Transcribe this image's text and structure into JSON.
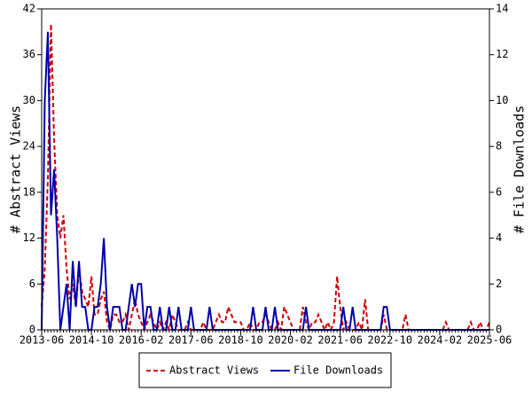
{
  "chart_data": {
    "type": "line",
    "y_label": "# Abstract Views",
    "y2_label": "# File Downloads",
    "categories": [
      "2013-06",
      "2013-07",
      "2013-08",
      "2013-09",
      "2013-10",
      "2013-11",
      "2013-12",
      "2014-01",
      "2014-02",
      "2014-03",
      "2014-04",
      "2014-05",
      "2014-06",
      "2014-07",
      "2014-08",
      "2014-09",
      "2014-10",
      "2014-11",
      "2014-12",
      "2015-01",
      "2015-02",
      "2015-03",
      "2015-04",
      "2015-05",
      "2015-06",
      "2015-07",
      "2015-08",
      "2015-09",
      "2015-10",
      "2015-11",
      "2015-12",
      "2016-01",
      "2016-02",
      "2016-03",
      "2016-04",
      "2016-05",
      "2016-06",
      "2016-07",
      "2016-08",
      "2016-09",
      "2016-10",
      "2016-11",
      "2016-12",
      "2017-01",
      "2017-02",
      "2017-03",
      "2017-04",
      "2017-05",
      "2017-06",
      "2017-07",
      "2017-08",
      "2017-09",
      "2017-10",
      "2017-11",
      "2017-12",
      "2018-01",
      "2018-02",
      "2018-03",
      "2018-04",
      "2018-05",
      "2018-06",
      "2018-07",
      "2018-08",
      "2018-09",
      "2018-10",
      "2018-11",
      "2018-12",
      "2019-01",
      "2019-02",
      "2019-03",
      "2019-04",
      "2019-05",
      "2019-06",
      "2019-07",
      "2019-08",
      "2019-09",
      "2019-10",
      "2019-11",
      "2019-12",
      "2020-01",
      "2020-02",
      "2020-03",
      "2020-04",
      "2020-05",
      "2020-06",
      "2020-07",
      "2020-08",
      "2020-09",
      "2020-10",
      "2020-11",
      "2020-12",
      "2021-01",
      "2021-02",
      "2021-03",
      "2021-04",
      "2021-05",
      "2021-06",
      "2021-07",
      "2021-08",
      "2021-09",
      "2021-10",
      "2021-11",
      "2021-12",
      "2022-01",
      "2022-02",
      "2022-03",
      "2022-04",
      "2022-05",
      "2022-06",
      "2022-07",
      "2022-08",
      "2022-09",
      "2022-10",
      "2022-11",
      "2022-12",
      "2023-01",
      "2023-02",
      "2023-03",
      "2023-04",
      "2023-05",
      "2023-06",
      "2023-07",
      "2023-08",
      "2023-09",
      "2023-10",
      "2023-11",
      "2023-12",
      "2024-01",
      "2024-02",
      "2024-03",
      "2024-04",
      "2024-05",
      "2024-06",
      "2024-07",
      "2024-08",
      "2024-09",
      "2024-10",
      "2024-11",
      "2024-12",
      "2025-01",
      "2025-02",
      "2025-03",
      "2025-04",
      "2025-05",
      "2025-06"
    ],
    "xticks": [
      "2013-06",
      "2014-10",
      "2016-02",
      "2017-06",
      "2018-10",
      "2020-02",
      "2021-06",
      "2022-10",
      "2024-02",
      "2025-06"
    ],
    "series": [
      {
        "name": "Abstract Views",
        "color": "#cc0000",
        "dash": true,
        "values": [
          3,
          8,
          20,
          40,
          25,
          15,
          12,
          15,
          8,
          4,
          6,
          3,
          8,
          5,
          4,
          3,
          7,
          2,
          2,
          4,
          5,
          1,
          0,
          2,
          2,
          1,
          1,
          2,
          0,
          2,
          4,
          2,
          1,
          0,
          1,
          2,
          1,
          0,
          1,
          0,
          1,
          0,
          2,
          1,
          0,
          0,
          0,
          1,
          0,
          0,
          0,
          0,
          1,
          0,
          0,
          0,
          1,
          2,
          1,
          1,
          3,
          2,
          1,
          1,
          1,
          0,
          0,
          1,
          0,
          0,
          1,
          1,
          2,
          1,
          0,
          0,
          1,
          0,
          3,
          2,
          1,
          0,
          0,
          0,
          3,
          1,
          0,
          1,
          1,
          2,
          1,
          0,
          1,
          0,
          1,
          7,
          3,
          0,
          1,
          0,
          0,
          0,
          1,
          0,
          4,
          0,
          0,
          0,
          0,
          0,
          2,
          0,
          0,
          0,
          0,
          0,
          0,
          2,
          0,
          0,
          0,
          0,
          0,
          0,
          0,
          0,
          0,
          0,
          0,
          0,
          1,
          0,
          0,
          0,
          0,
          0,
          0,
          0,
          1,
          0,
          0,
          1,
          0,
          0,
          1
        ]
      },
      {
        "name": "File Downloads",
        "color": "#0000aa",
        "axis": "y2",
        "values": [
          0,
          10,
          13,
          5,
          7,
          4,
          0,
          1,
          2,
          0,
          3,
          1,
          3,
          1,
          1,
          0,
          0,
          1,
          1,
          2,
          4,
          1,
          0,
          1,
          1,
          1,
          0,
          0,
          1,
          2,
          1,
          2,
          2,
          0,
          1,
          1,
          0,
          0,
          1,
          0,
          0,
          1,
          0,
          0,
          1,
          0,
          0,
          0,
          1,
          0,
          0,
          0,
          0,
          0,
          1,
          0,
          0,
          0,
          0,
          0,
          0,
          0,
          0,
          0,
          0,
          0,
          0,
          0,
          1,
          0,
          0,
          0,
          1,
          0,
          0,
          1,
          0,
          0,
          0,
          0,
          0,
          0,
          0,
          0,
          0,
          1,
          0,
          0,
          0,
          0,
          0,
          0,
          0,
          0,
          0,
          0,
          0,
          1,
          0,
          0,
          1,
          0,
          0,
          0,
          0,
          0,
          0,
          0,
          0,
          0,
          1,
          1,
          0,
          0,
          0,
          0,
          0,
          0,
          0,
          0,
          0,
          0,
          0,
          0,
          0,
          0,
          0,
          0,
          0,
          0,
          0,
          0,
          0,
          0,
          0,
          0,
          0,
          0,
          0,
          0,
          0,
          0,
          0,
          0,
          0
        ]
      }
    ],
    "ylim": [
      0,
      42
    ],
    "yticks": [
      0,
      6,
      12,
      18,
      24,
      30,
      36,
      42
    ],
    "y2lim": [
      0,
      14
    ],
    "y2ticks": [
      0,
      2,
      4,
      6,
      8,
      10,
      12,
      14
    ],
    "legend": "bottom"
  }
}
